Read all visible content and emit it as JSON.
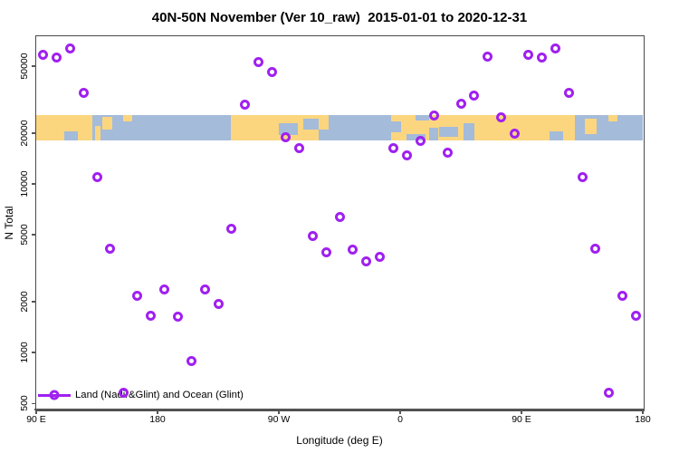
{
  "title": "40N-50N November (Ver 10_raw)  2015-01-01 to 2020-12-31",
  "colors": {
    "marker": "#a020f0",
    "axis": "#4a4a4a",
    "land": "#fbd67f",
    "ocean": "#a4bbda",
    "background": "#ffffff"
  },
  "chart_data": {
    "type": "scatter",
    "title": "40N-50N November (Ver 10_raw)  2015-01-01 to 2020-12-31",
    "xlabel": "Longitude (deg E)",
    "ylabel": "N Total",
    "x_axis": {
      "lim": [
        90,
        540
      ],
      "ticks": [
        90,
        180,
        270,
        360,
        450,
        540
      ],
      "tick_labels": [
        "90 E",
        "180",
        "90 W",
        "0",
        "90 E",
        "180"
      ],
      "note": "longitude wraps: 90E to 180 to 90W to 0 to 90E to 180"
    },
    "y_axis": {
      "scale": "log",
      "lim": [
        460,
        75000
      ],
      "ticks": [
        500,
        1000,
        2000,
        5000,
        10000,
        20000,
        50000
      ],
      "tick_labels": [
        "500",
        "1000",
        "2000",
        "5000",
        "10000",
        "20000",
        "50000"
      ]
    },
    "legend": {
      "label": "Land (Nadir&Glint) and Ocean (Glint)",
      "marker": "open-circle-on-line",
      "color": "#a020f0",
      "position": "bottom-left"
    },
    "series": [
      {
        "name": "Land (Nadir&Glint) and Ocean (Glint)",
        "marker": "open-circle",
        "color": "#a020f0",
        "points": [
          [
            95,
            58000
          ],
          [
            105,
            55900
          ],
          [
            115,
            63300
          ],
          [
            125,
            34500
          ],
          [
            135,
            10900
          ],
          [
            145,
            4150
          ],
          [
            155,
            575
          ],
          [
            165,
            2180
          ],
          [
            175,
            1660
          ],
          [
            185,
            2380
          ],
          [
            195,
            1640
          ],
          [
            205,
            890
          ],
          [
            215,
            2380
          ],
          [
            225,
            1950
          ],
          [
            235,
            5450
          ],
          [
            245,
            29400
          ],
          [
            255,
            52500
          ],
          [
            265,
            45800
          ],
          [
            275,
            19000
          ],
          [
            285,
            16200
          ],
          [
            295,
            4940
          ],
          [
            305,
            3950
          ],
          [
            315,
            6330
          ],
          [
            325,
            4100
          ],
          [
            335,
            3490
          ],
          [
            345,
            3700
          ],
          [
            355,
            16200
          ],
          [
            365,
            14700
          ],
          [
            375,
            17900
          ],
          [
            385,
            25300
          ],
          [
            395,
            15400
          ],
          [
            405,
            29700
          ],
          [
            415,
            33200
          ],
          [
            425,
            56600
          ],
          [
            435,
            24700
          ],
          [
            445,
            19800
          ],
          [
            455,
            58000
          ],
          [
            465,
            55900
          ],
          [
            475,
            63300
          ],
          [
            485,
            34500
          ],
          [
            495,
            10900
          ],
          [
            505,
            4150
          ],
          [
            515,
            575
          ],
          [
            525,
            2180
          ],
          [
            535,
            1660
          ]
        ]
      }
    ],
    "map_band": {
      "description": "40N-50N world map strip drawn across the plot at N ~18000-25500",
      "n_range": [
        18000,
        25500
      ],
      "land_color": "#fbd67f",
      "ocean_color": "#a4bbda",
      "land_segments": [
        [
          0.0,
          0.092,
          0.0,
          1.0
        ],
        [
          0.097,
          0.106,
          0.4,
          1.0
        ],
        [
          0.109,
          0.125,
          0.05,
          0.55
        ],
        [
          0.144,
          0.158,
          0.0,
          0.25
        ],
        [
          0.321,
          0.482,
          0.0,
          1.0
        ],
        [
          0.585,
          0.888,
          0.0,
          1.0
        ],
        [
          0.904,
          0.924,
          0.15,
          0.75
        ],
        [
          0.944,
          0.958,
          0.0,
          0.25
        ]
      ],
      "ocean_patches": [
        [
          0.046,
          0.068,
          0.62,
          1.0
        ],
        [
          0.4,
          0.431,
          0.32,
          0.78
        ],
        [
          0.44,
          0.465,
          0.12,
          0.55
        ],
        [
          0.465,
          0.482,
          0.55,
          1.0
        ],
        [
          0.585,
          0.601,
          0.25,
          0.65
        ],
        [
          0.61,
          0.642,
          0.72,
          1.0
        ],
        [
          0.625,
          0.648,
          0.0,
          0.22
        ],
        [
          0.648,
          0.662,
          0.5,
          1.0
        ],
        [
          0.664,
          0.696,
          0.45,
          0.85
        ],
        [
          0.705,
          0.723,
          0.3,
          1.0
        ],
        [
          0.846,
          0.868,
          0.62,
          1.0
        ]
      ]
    }
  }
}
